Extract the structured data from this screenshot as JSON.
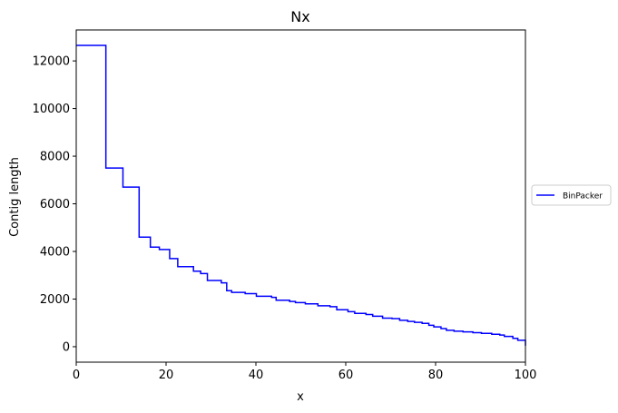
{
  "chart_data": {
    "type": "line",
    "title": "Nx",
    "xlabel": "x",
    "ylabel": "Contig length",
    "xlim": [
      0,
      100
    ],
    "ylim": [
      -650,
      13300
    ],
    "xticks": [
      0,
      20,
      40,
      60,
      80,
      100
    ],
    "yticks": [
      0,
      2000,
      4000,
      6000,
      8000,
      10000,
      12000
    ],
    "grid": false,
    "legend_position": "right, outside plot",
    "series": [
      {
        "name": "BinPacker",
        "color": "#0000ff",
        "step": true,
        "x": [
          0,
          6.6,
          10.4,
          14,
          16.5,
          18.5,
          20.8,
          22.6,
          26.1,
          27.7,
          29.2,
          32.3,
          33.5,
          34.6,
          37.6,
          40.1,
          43.5,
          44.5,
          47.5,
          48.8,
          51,
          53.8,
          56.5,
          58,
          60.5,
          62,
          64.5,
          66,
          68.2,
          70.3,
          72,
          73.8,
          75.3,
          77,
          78.5,
          79.6,
          81.2,
          82.4,
          84.1,
          86.1,
          88.3,
          90.2,
          92.5,
          94.3,
          95.3,
          97.2,
          98.3,
          100
        ],
        "y": [
          12650,
          7500,
          6700,
          4600,
          4180,
          4080,
          3700,
          3360,
          3170,
          3070,
          2780,
          2680,
          2350,
          2280,
          2230,
          2120,
          2070,
          1950,
          1900,
          1850,
          1800,
          1720,
          1680,
          1550,
          1470,
          1400,
          1350,
          1280,
          1200,
          1180,
          1110,
          1060,
          1020,
          980,
          900,
          830,
          760,
          690,
          650,
          620,
          590,
          560,
          520,
          490,
          430,
          350,
          270,
          40
        ]
      }
    ]
  }
}
